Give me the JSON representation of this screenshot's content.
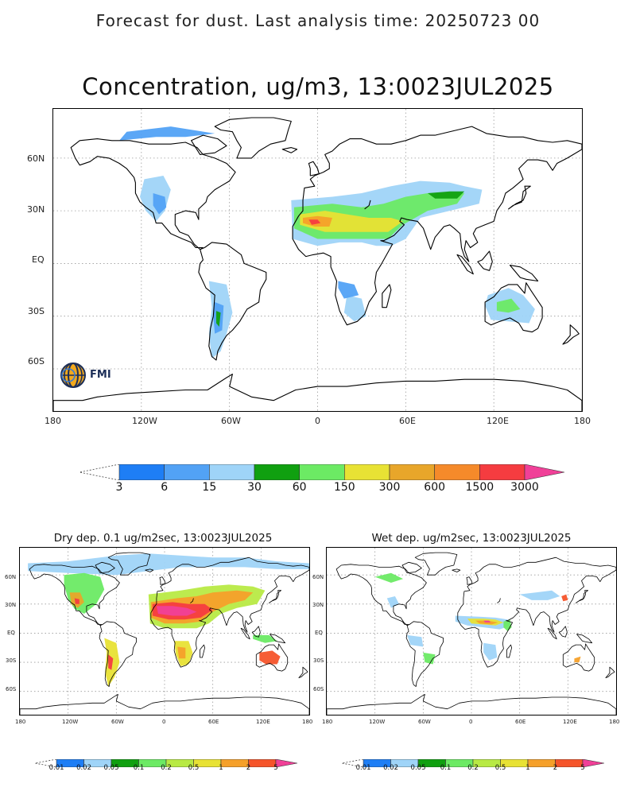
{
  "header": {
    "title": "Forecast for dust. Last analysis time: 20250723 00"
  },
  "main_map": {
    "title": "Concentration, ug/m3, 13:0023JUL2025",
    "lat_ticks": [
      "60N",
      "30N",
      "EQ",
      "30S",
      "60S"
    ],
    "lon_ticks": [
      "180",
      "120W",
      "60W",
      "0",
      "60E",
      "120E",
      "180"
    ],
    "logo_text": "FMI",
    "logo_icon": "fmi-globe-icon"
  },
  "main_colorbar": {
    "labels": [
      "3",
      "6",
      "15",
      "30",
      "60",
      "150",
      "300",
      "600",
      "1500",
      "3000"
    ],
    "colors": [
      "#1e7ef5",
      "#52a2f5",
      "#9fd4f8",
      "#10a010",
      "#6cea64",
      "#e8e234",
      "#e8a62a",
      "#f58a2a",
      "#f53c40",
      "#f04098"
    ]
  },
  "dry_map": {
    "title": "Dry dep. 0.1 ug/m2sec, 13:0023JUL2025",
    "lat_ticks": [
      "60N",
      "30N",
      "EQ",
      "30S",
      "60S"
    ],
    "lon_ticks": [
      "180",
      "120W",
      "60W",
      "0",
      "60E",
      "120E",
      "180"
    ]
  },
  "wet_map": {
    "title": "Wet dep. ug/m2sec, 13:0023JUL2025",
    "lat_ticks": [
      "60N",
      "30N",
      "EQ",
      "30S",
      "60S"
    ],
    "lon_ticks": [
      "180",
      "120W",
      "60W",
      "0",
      "60E",
      "120E",
      "180"
    ]
  },
  "small_colorbar": {
    "labels": [
      "0.01",
      "0.02",
      "0.05",
      "0.1",
      "0.2",
      "0.5",
      "1",
      "2",
      "5"
    ],
    "colors": [
      "#1e7ef5",
      "#9fd4f8",
      "#10a010",
      "#6cea64",
      "#b8ea44",
      "#e8e234",
      "#f5a02a",
      "#f5542a",
      "#f04098"
    ]
  }
}
